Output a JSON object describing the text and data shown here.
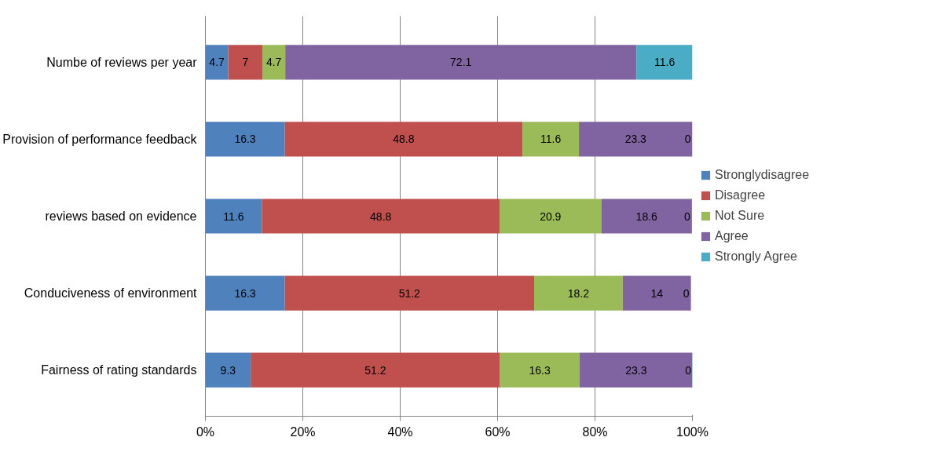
{
  "chart_data": {
    "type": "bar",
    "orientation": "horizontal",
    "stacked": true,
    "categories": [
      "Numbe of reviews per year",
      "Provision of performance feedback",
      "reviews based on evidence",
      "Conduciveness of environment",
      "Fairness of rating standards"
    ],
    "series": [
      {
        "name": "Stronglydisagree",
        "color": "#4f81bd",
        "values": [
          4.7,
          16.3,
          11.6,
          16.3,
          9.3
        ]
      },
      {
        "name": "Disagree",
        "color": "#c0504d",
        "values": [
          7,
          48.8,
          48.8,
          51.2,
          51.2
        ]
      },
      {
        "name": "Not Sure",
        "color": "#9bbb59",
        "values": [
          4.7,
          11.6,
          20.9,
          18.2,
          16.3
        ]
      },
      {
        "name": "Agree",
        "color": "#8064a2",
        "values": [
          72.1,
          23.3,
          18.6,
          14,
          23.3
        ]
      },
      {
        "name": "Strongly Agree",
        "color": "#4bacc6",
        "values": [
          11.6,
          0,
          0,
          0,
          0
        ]
      }
    ],
    "xlim": [
      0,
      100
    ],
    "xticks": [
      {
        "value": 0,
        "label": "0%"
      },
      {
        "value": 20,
        "label": "20%"
      },
      {
        "value": 40,
        "label": "40%"
      },
      {
        "value": 60,
        "label": "60%"
      },
      {
        "value": 80,
        "label": "80%"
      },
      {
        "value": 100,
        "label": "100%"
      }
    ],
    "grid": "x",
    "legend": "right",
    "data_labels": true
  }
}
